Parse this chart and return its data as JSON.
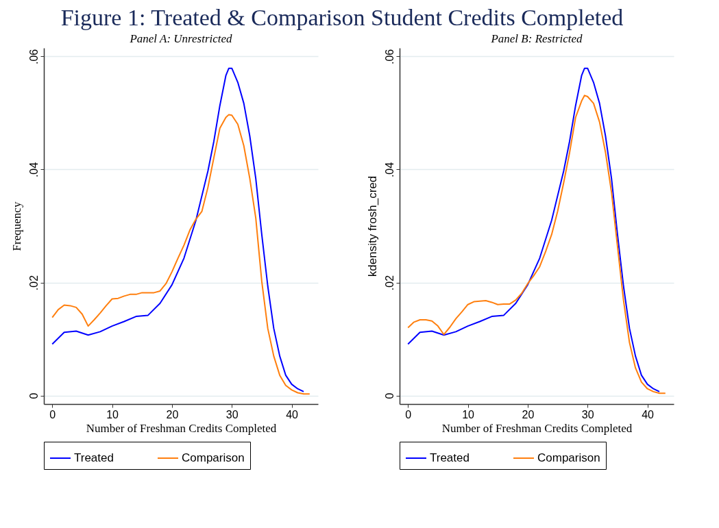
{
  "chart_data": [
    {
      "type": "line",
      "title": "Figure 1: Treated & Comparison Student Credits Completed",
      "subtitle": "Panel A: Unrestricted",
      "xlabel": "Number of Freshman Credits Completed",
      "ylabel": "Frequency",
      "xlim": [
        -1.4,
        44.4
      ],
      "ylim": [
        -0.0015,
        0.0615
      ],
      "xticks": [
        0,
        10,
        20,
        30,
        40
      ],
      "yticks": [
        {
          "value": 0,
          "label": "0"
        },
        {
          "value": 0.02,
          "label": ".02"
        },
        {
          "value": 0.04,
          "label": ".04"
        },
        {
          "value": 0.06,
          "label": ".06"
        }
      ],
      "grid": "y",
      "legend": "bottom",
      "line_style": "solid",
      "series": [
        {
          "name": "Treated",
          "color": "#0000ff",
          "x": [
            0,
            2,
            4,
            6,
            8,
            10,
            12,
            14,
            16,
            18,
            20,
            22,
            24,
            26,
            27,
            28,
            29,
            29.5,
            30,
            31,
            32,
            33,
            34,
            35,
            36,
            37,
            38,
            39,
            40,
            41,
            42
          ],
          "values": [
            0.0091,
            0.0112,
            0.0114,
            0.0107,
            0.0113,
            0.0123,
            0.0131,
            0.014,
            0.0142,
            0.0163,
            0.0196,
            0.0243,
            0.031,
            0.0397,
            0.045,
            0.0513,
            0.0566,
            0.0579,
            0.0579,
            0.0554,
            0.0517,
            0.0459,
            0.0384,
            0.0285,
            0.0194,
            0.0119,
            0.007,
            0.0036,
            0.002,
            0.0012,
            0.0007
          ]
        },
        {
          "name": "Comparison",
          "color": "#ff7f0e",
          "x": [
            0,
            1,
            2,
            3,
            4,
            5,
            6,
            7,
            8,
            9,
            10,
            11,
            12,
            13,
            14,
            15,
            16,
            17,
            18,
            19,
            20,
            21,
            22,
            23,
            24,
            25,
            26,
            27,
            28,
            29,
            29.5,
            30,
            31,
            32,
            33,
            34,
            35,
            36,
            37,
            38,
            39,
            40,
            41,
            42,
            43
          ],
          "values": [
            0.0138,
            0.0152,
            0.016,
            0.0159,
            0.0156,
            0.0144,
            0.0123,
            0.0134,
            0.0146,
            0.0159,
            0.0171,
            0.0172,
            0.0176,
            0.0179,
            0.0179,
            0.0182,
            0.0182,
            0.0182,
            0.0185,
            0.0198,
            0.0219,
            0.0243,
            0.0266,
            0.0293,
            0.0312,
            0.0326,
            0.0368,
            0.0421,
            0.0473,
            0.0492,
            0.0497,
            0.0496,
            0.048,
            0.0442,
            0.0384,
            0.0314,
            0.0202,
            0.0119,
            0.007,
            0.0036,
            0.0018,
            0.001,
            0.0005,
            0.0003,
            0.0003
          ]
        }
      ]
    },
    {
      "type": "line",
      "subtitle": "Panel B: Restricted",
      "xlabel": "Number of Freshman Credits Completed",
      "ylabel": "kdensity frosh_cred",
      "xlim": [
        -1.4,
        44.4
      ],
      "ylim": [
        -0.0015,
        0.0615
      ],
      "xticks": [
        0,
        10,
        20,
        30,
        40
      ],
      "yticks": [
        {
          "value": 0,
          "label": "0"
        },
        {
          "value": 0.02,
          "label": ".02"
        },
        {
          "value": 0.04,
          "label": ".04"
        },
        {
          "value": 0.06,
          "label": ".06"
        }
      ],
      "grid": "y",
      "legend": "bottom",
      "line_style": "solid",
      "series": [
        {
          "name": "Treated",
          "color": "#0000ff",
          "x": [
            0,
            2,
            4,
            6,
            8,
            10,
            12,
            14,
            16,
            18,
            20,
            22,
            24,
            26,
            27,
            28,
            29,
            29.5,
            30,
            31,
            32,
            33,
            34,
            35,
            36,
            37,
            38,
            39,
            40,
            41,
            42
          ],
          "values": [
            0.0091,
            0.0112,
            0.0114,
            0.0107,
            0.0113,
            0.0123,
            0.0131,
            0.014,
            0.0142,
            0.0163,
            0.0196,
            0.0243,
            0.031,
            0.0397,
            0.045,
            0.0513,
            0.0566,
            0.0579,
            0.0579,
            0.0554,
            0.0517,
            0.0459,
            0.0384,
            0.0285,
            0.0194,
            0.0119,
            0.007,
            0.0036,
            0.002,
            0.0012,
            0.0007
          ]
        },
        {
          "name": "Comparison",
          "color": "#ff7f0e",
          "x": [
            0,
            1,
            2,
            3,
            4,
            5,
            6,
            7,
            8,
            9,
            10,
            11,
            12,
            13,
            14,
            15,
            16,
            17,
            18,
            19,
            20,
            21,
            22,
            23,
            24,
            25,
            26,
            27,
            28,
            29,
            29.5,
            30,
            31,
            32,
            33,
            34,
            35,
            36,
            37,
            38,
            39,
            40,
            41,
            42,
            43
          ],
          "values": [
            0.012,
            0.013,
            0.0134,
            0.0134,
            0.0132,
            0.0123,
            0.0108,
            0.0121,
            0.0136,
            0.0148,
            0.0161,
            0.0166,
            0.0167,
            0.0168,
            0.0165,
            0.0161,
            0.0162,
            0.0162,
            0.0169,
            0.0181,
            0.0198,
            0.0212,
            0.0228,
            0.0255,
            0.0285,
            0.0326,
            0.0376,
            0.043,
            0.0492,
            0.0521,
            0.0531,
            0.0529,
            0.0517,
            0.0484,
            0.043,
            0.036,
            0.0264,
            0.0169,
            0.0094,
            0.0049,
            0.0024,
            0.0012,
            0.0007,
            0.0004,
            0.0004
          ]
        }
      ]
    }
  ]
}
